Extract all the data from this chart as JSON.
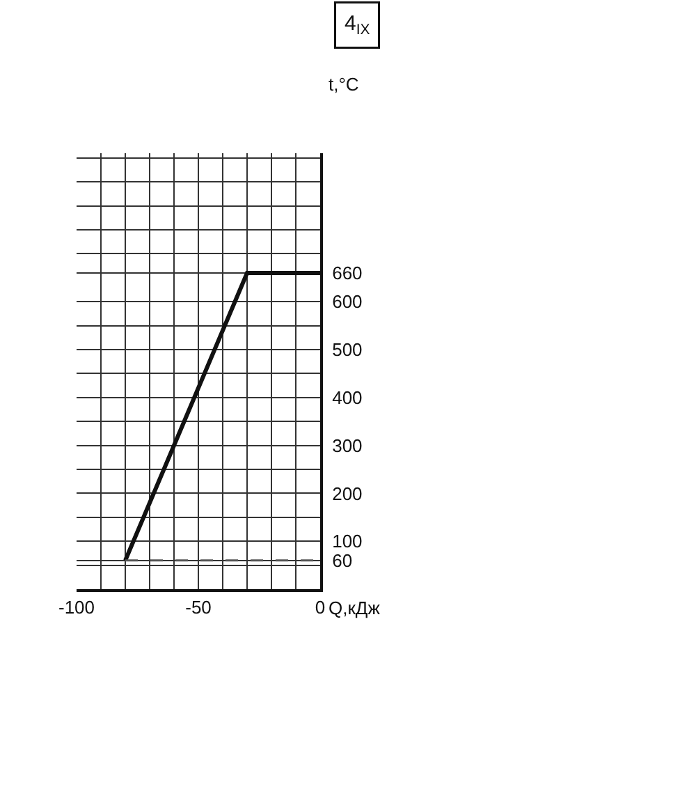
{
  "chart_data": {
    "type": "line",
    "x": [
      -80,
      -30,
      0
    ],
    "series": [
      {
        "color": "#111111",
        "values": [
          60,
          660,
          660
        ],
        "line_style": "solid"
      },
      {
        "color": "#555555",
        "x": [
          -80,
          0
        ],
        "values": [
          60,
          60
        ],
        "line_style": "dashed"
      }
    ],
    "xlabel": "Q,кДж",
    "ylabel": "t,°C",
    "annotations": [
      "4$_{IX}$"
    ],
    "xlim": [
      -100,
      0
    ],
    "ylim": [
      0,
      910
    ],
    "xticks": [
      -100,
      {
        "value": -90,
        "label": null
      },
      {
        "value": -80,
        "label": null
      },
      {
        "value": -70,
        "label": null
      },
      {
        "value": -60,
        "label": null
      },
      -50,
      {
        "value": -40,
        "label": null
      },
      {
        "value": -30,
        "label": null
      },
      {
        "value": -20,
        "label": null
      },
      {
        "value": -10,
        "label": null
      },
      0
    ],
    "yticks": [
      {
        "value": 50,
        "label": null
      },
      60,
      100,
      {
        "value": 150,
        "label": null
      },
      200,
      {
        "value": 250,
        "label": null
      },
      300,
      {
        "value": 350,
        "label": null
      },
      400,
      {
        "value": 450,
        "label": null
      },
      500,
      {
        "value": 550,
        "label": null
      },
      600,
      660,
      {
        "value": 700,
        "label": null
      },
      {
        "value": 750,
        "label": null
      },
      {
        "value": 800,
        "label": null
      },
      {
        "value": 850,
        "label": null
      },
      {
        "value": 900,
        "label": null
      }
    ],
    "grid": true,
    "legend": false
  }
}
